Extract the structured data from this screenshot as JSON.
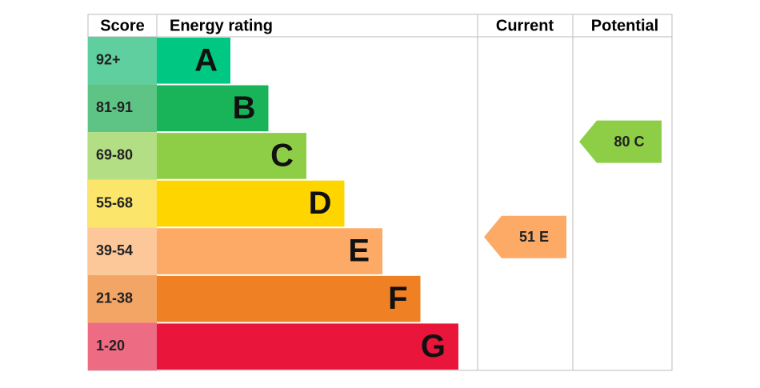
{
  "headers": {
    "score": "Score",
    "rating": "Energy rating",
    "current": "Current",
    "potential": "Potential"
  },
  "bands": [
    {
      "range": "92+",
      "letter": "A",
      "color": "#00c781",
      "light": "#5fcf9f"
    },
    {
      "range": "81-91",
      "letter": "B",
      "color": "#19b459",
      "light": "#5ec486"
    },
    {
      "range": "69-80",
      "letter": "C",
      "color": "#8dce46",
      "light": "#b3de84"
    },
    {
      "range": "55-68",
      "letter": "D",
      "color": "#ffd500",
      "light": "#fbe56a"
    },
    {
      "range": "39-54",
      "letter": "E",
      "color": "#fcaa65",
      "light": "#fcc89a"
    },
    {
      "range": "21-38",
      "letter": "F",
      "color": "#ef8023",
      "light": "#f3a566"
    },
    {
      "range": "1-20",
      "letter": "G",
      "color": "#e9153b",
      "light": "#ee6b84"
    }
  ],
  "current": {
    "value": 51,
    "label": "51 E"
  },
  "potential": {
    "value": 80,
    "label": "80 C"
  }
}
